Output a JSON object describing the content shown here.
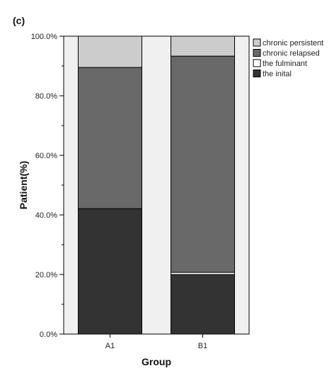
{
  "chart_data": {
    "type": "bar",
    "stacked": true,
    "panel_label": "(c)",
    "categories": [
      "A1",
      "B1"
    ],
    "xlabel": "Group",
    "ylabel": "Patient(%)",
    "ylim": [
      0,
      100
    ],
    "yticks": [
      "0.0%",
      "20.0%",
      "40.0%",
      "60.0%",
      "80.0%",
      "100.0%"
    ],
    "grid": false,
    "legend_position": "top-right",
    "series": [
      {
        "name": "the inital",
        "color": "#333333",
        "values": [
          42.1,
          20.0
        ]
      },
      {
        "name": "the fulminant",
        "color": "#ffffff",
        "values": [
          0.0,
          0.7
        ]
      },
      {
        "name": "chronic relapsed",
        "color": "#696969",
        "values": [
          47.4,
          72.6
        ]
      },
      {
        "name": "chronic persistent",
        "color": "#cccccc",
        "values": [
          10.5,
          6.7
        ]
      }
    ],
    "legend_order": [
      "chronic persistent",
      "chronic relapsed",
      "the fulminant",
      "the inital"
    ]
  }
}
